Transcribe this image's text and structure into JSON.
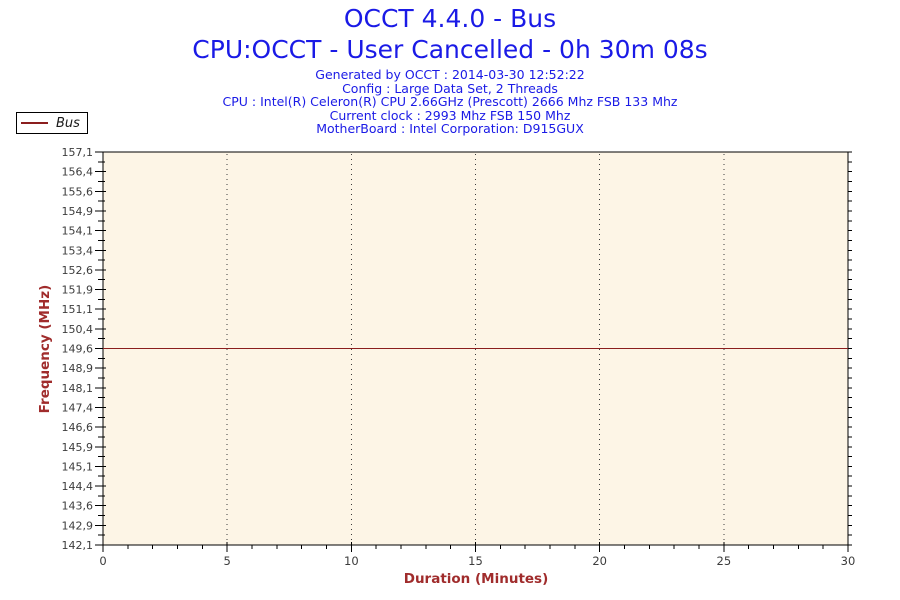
{
  "header": {
    "title": "OCCT 4.4.0 - Bus",
    "subtitle": "CPU:OCCT - User Cancelled - 0h 30m 08s",
    "title_color": "#1a1ae6",
    "info_lines": [
      "Generated by OCCT : 2014-03-30 12:52:22",
      "Config : Large Data Set, 2 Threads",
      "CPU : Intel(R) Celeron(R) CPU 2.66GHz (Prescott) 2666 Mhz FSB 133 Mhz",
      "Current clock : 2993 Mhz FSB 150 Mhz",
      "MotherBoard : Intel Corporation: D915GUX"
    ]
  },
  "legend": {
    "series_label": "Bus",
    "line_color": "#8b1e1e"
  },
  "chart_data": {
    "type": "line",
    "title": "OCCT 4.4.0 - Bus",
    "xlabel": "Duration (Minutes)",
    "ylabel": "Frequency (MHz)",
    "axis_title_color": "#a02c2c",
    "tick_label_color": "#3c3c3c",
    "plot_bg": "#fdf5e6",
    "xlim": [
      0,
      30
    ],
    "ylim": [
      142.1,
      157.1
    ],
    "x_major_step": 5,
    "x_minor_step": 1,
    "y_major_step": 0.75,
    "y_minor_step": 0.375,
    "x_tick_labels": [
      "0",
      "5",
      "10",
      "15",
      "20",
      "25",
      "30"
    ],
    "y_tick_labels": [
      "142,1",
      "142,9",
      "143,6",
      "144,4",
      "145,1",
      "145,9",
      "146,6",
      "147,4",
      "148,1",
      "148,9",
      "149,6",
      "150,4",
      "151,1",
      "151,9",
      "152,6",
      "153,4",
      "154,1",
      "154,9",
      "155,6",
      "156,4",
      "157,1"
    ],
    "x_gridlines": [
      5,
      10,
      15,
      20,
      25
    ],
    "grid": "vertical-dotted",
    "legend_position": "top-left",
    "decimal_separator": ",",
    "series": [
      {
        "name": "Bus",
        "color": "#8b1e1e",
        "x": [
          0,
          30
        ],
        "values": [
          149.6,
          149.6
        ]
      }
    ]
  }
}
